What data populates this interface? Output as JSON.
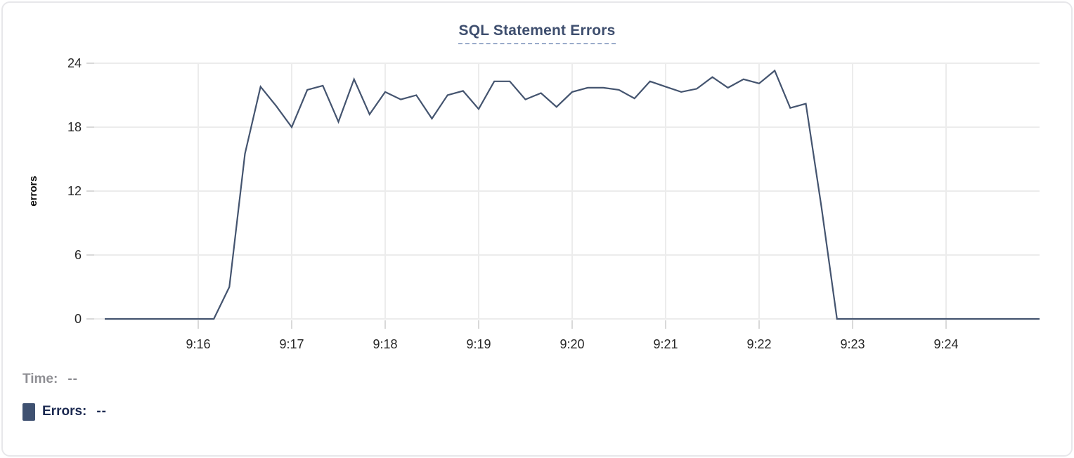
{
  "chart_data": {
    "type": "line",
    "title": "SQL Statement Errors",
    "xlabel": "",
    "ylabel": "errors",
    "ylim": [
      0,
      24
    ],
    "y_ticks": [
      0,
      6,
      12,
      18,
      24
    ],
    "x_tick_labels": [
      "9:16",
      "9:17",
      "9:18",
      "9:19",
      "9:20",
      "9:21",
      "9:22",
      "9:23",
      "9:24"
    ],
    "grid": true,
    "legend_position": "bottom-left",
    "line_color": "#44546f",
    "grid_color": "#ececec",
    "tick_color": "#d9d9d9",
    "axis_label_color": "#262626",
    "x": [
      "9:15:00",
      "9:15:10",
      "9:15:20",
      "9:15:30",
      "9:15:40",
      "9:15:50",
      "9:16:00",
      "9:16:10",
      "9:16:20",
      "9:16:30",
      "9:16:40",
      "9:16:50",
      "9:17:00",
      "9:17:10",
      "9:17:20",
      "9:17:30",
      "9:17:40",
      "9:17:50",
      "9:18:00",
      "9:18:10",
      "9:18:20",
      "9:18:30",
      "9:18:40",
      "9:18:50",
      "9:19:00",
      "9:19:10",
      "9:19:20",
      "9:19:30",
      "9:19:40",
      "9:19:50",
      "9:20:00",
      "9:20:10",
      "9:20:20",
      "9:20:30",
      "9:20:40",
      "9:20:50",
      "9:21:00",
      "9:21:10",
      "9:21:20",
      "9:21:30",
      "9:21:40",
      "9:21:50",
      "9:22:00",
      "9:22:10",
      "9:22:20",
      "9:22:30",
      "9:22:40",
      "9:22:50",
      "9:23:00",
      "9:23:10",
      "9:23:20",
      "9:23:30",
      "9:23:40",
      "9:23:50",
      "9:24:00",
      "9:24:10",
      "9:24:20",
      "9:24:30",
      "9:24:40",
      "9:24:50",
      "9:25:00"
    ],
    "series": [
      {
        "name": "Errors",
        "values": [
          0,
          0,
          0,
          0,
          0,
          0,
          0,
          0,
          3,
          15.5,
          21.8,
          20,
          18,
          21.5,
          21.9,
          18.5,
          22.5,
          19.2,
          21.3,
          20.6,
          21,
          18.8,
          21,
          21.4,
          19.7,
          22.3,
          22.3,
          20.6,
          21.2,
          19.9,
          21.3,
          21.7,
          21.7,
          21.5,
          20.7,
          22.3,
          21.8,
          21.3,
          21.6,
          22.7,
          21.7,
          22.5,
          22.1,
          23.3,
          19.8,
          20.2,
          10.5,
          0,
          0,
          0,
          0,
          0,
          0,
          0,
          0,
          0,
          0,
          0,
          0,
          0,
          0
        ]
      }
    ]
  },
  "readout": {
    "time_label": "Time:",
    "time_value": "--",
    "errors_label": "Errors:",
    "errors_value": "--",
    "errors_swatch_color": "#3f5171"
  }
}
